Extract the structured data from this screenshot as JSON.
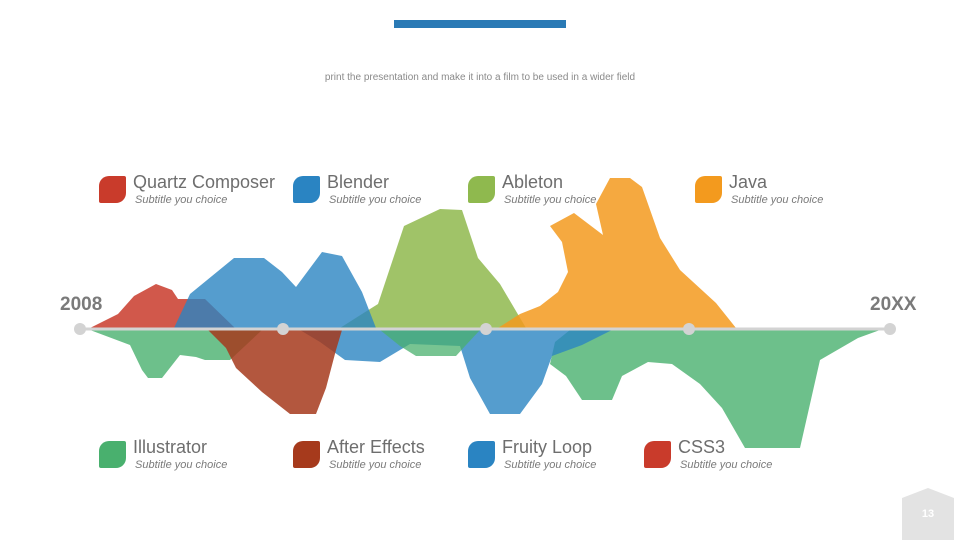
{
  "header": {
    "subtitle": "print the presentation and make it into a film to be used in a wider field"
  },
  "timeline": {
    "start_label": "2008",
    "end_label": "20XX"
  },
  "items": [
    {
      "name": "Quartz Composer",
      "subtitle": "Subtitle you choice",
      "color": "#c93b2b"
    },
    {
      "name": "Blender",
      "subtitle": "Subtitle you choice",
      "color": "#2a84c2"
    },
    {
      "name": "Ableton",
      "subtitle": "Subtitle you choice",
      "color": "#8fb94e"
    },
    {
      "name": "Java",
      "subtitle": "Subtitle you choice",
      "color": "#f39a1e"
    },
    {
      "name": "Illustrator",
      "subtitle": "Subtitle you choice",
      "color": "#49b06e"
    },
    {
      "name": "After Effects",
      "subtitle": "Subtitle you choice",
      "color": "#a63a1c"
    },
    {
      "name": "Fruity Loop",
      "subtitle": "Subtitle you choice",
      "color": "#2a84c2"
    },
    {
      "name": "CSS3",
      "subtitle": "Subtitle you choice",
      "color": "#c93b2b"
    }
  ],
  "page": {
    "number": "13"
  }
}
